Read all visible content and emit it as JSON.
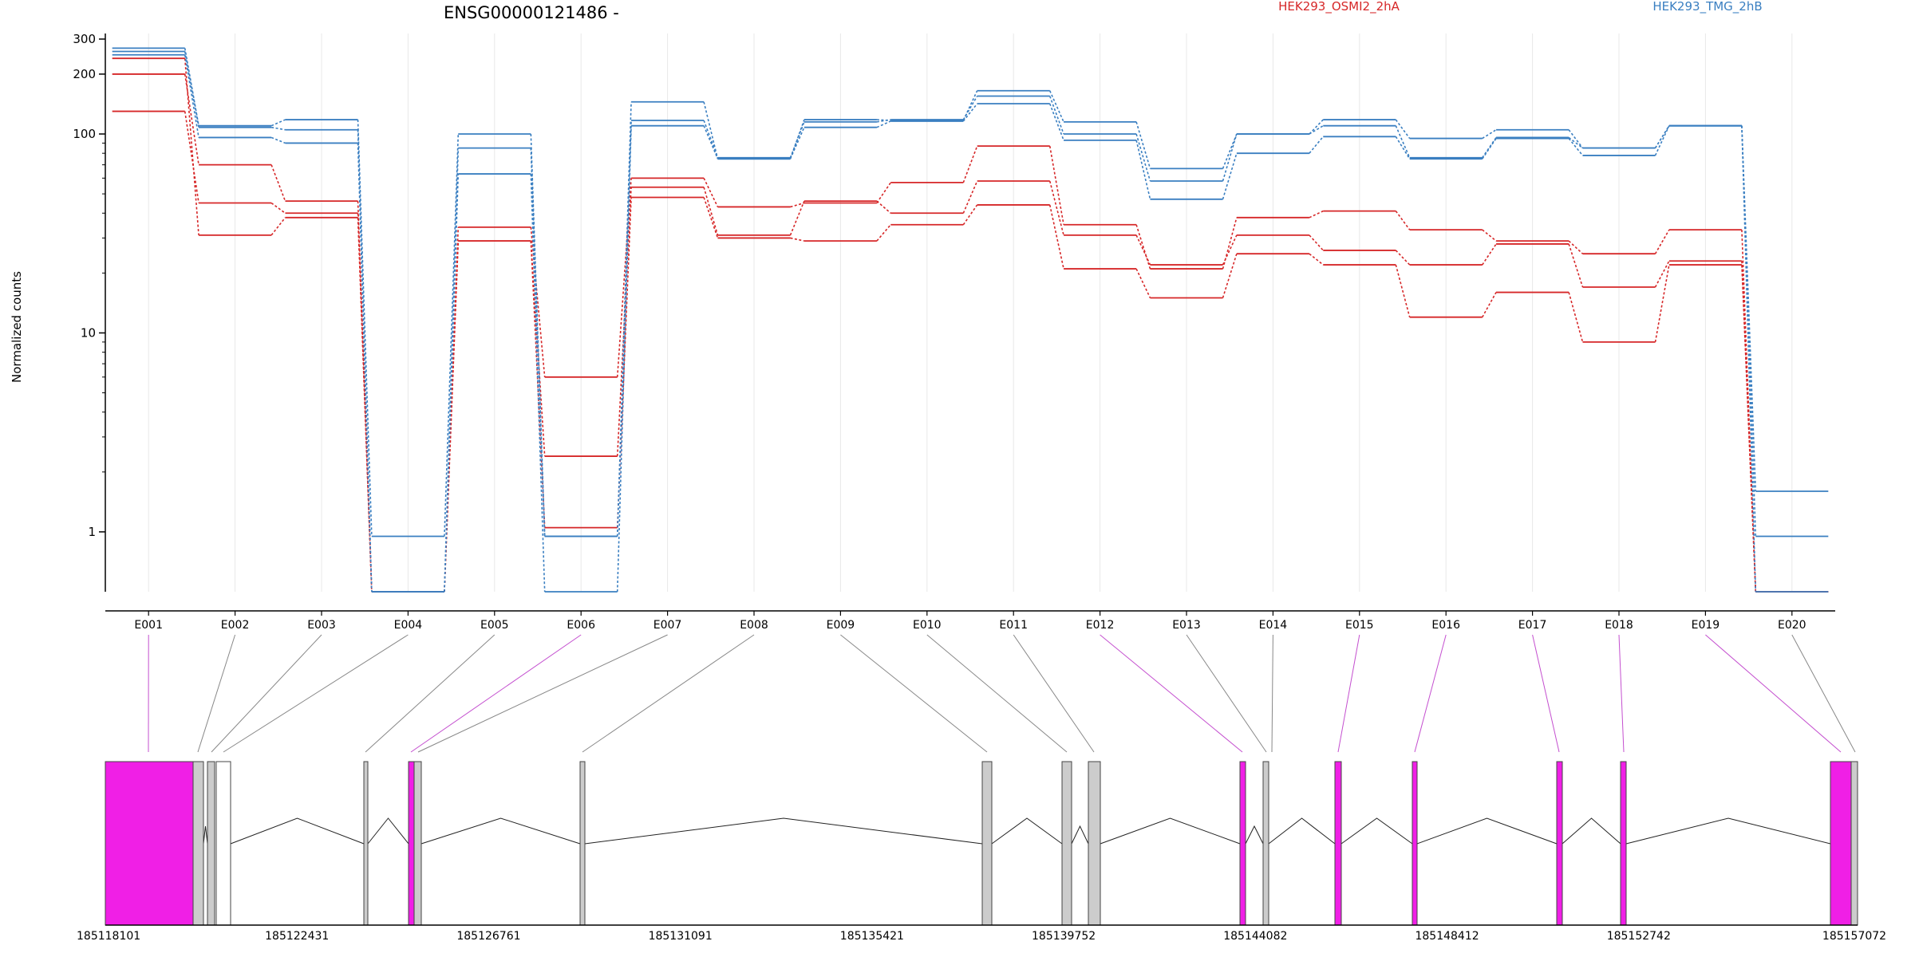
{
  "chart_data": {
    "type": "line",
    "title": "ENSG00000121486 -",
    "ylabel": "Normalized counts",
    "yscale": "log",
    "ylim": [
      0.5,
      320
    ],
    "yticks": [
      1,
      10,
      100,
      200,
      300
    ],
    "ytick_labels": [
      "1",
      "10",
      "100",
      "200",
      "300"
    ],
    "legend_position": "top",
    "grid": true,
    "categories": [
      "E001",
      "E002",
      "E003",
      "E004",
      "E005",
      "E006",
      "E007",
      "E008",
      "E009",
      "E010",
      "E011",
      "E012",
      "E013",
      "E014",
      "E015",
      "E016",
      "E017",
      "E018",
      "E019",
      "E020"
    ],
    "groups": [
      {
        "label": "HEK293_OSMI2_2hA",
        "color": "#d62728"
      },
      {
        "label": "HEK293_TMG_2hB",
        "color": "#3a7fc1"
      }
    ],
    "series": [
      {
        "group": 0,
        "values": [
          200,
          70,
          46,
          0.5,
          34,
          6,
          60,
          43,
          45,
          57,
          87,
          35,
          21,
          38,
          41,
          33,
          29,
          25,
          33,
          0.5
        ]
      },
      {
        "group": 0,
        "values": [
          130,
          45,
          40,
          0.5,
          29,
          2.4,
          54,
          31,
          46,
          40,
          58,
          31,
          22,
          31,
          26,
          22,
          28,
          17,
          23,
          0.5
        ]
      },
      {
        "group": 0,
        "values": [
          240,
          31,
          38,
          0.5,
          29,
          1.05,
          48,
          30,
          29,
          35,
          44,
          21,
          15,
          25,
          22,
          12,
          16,
          9,
          22,
          0.5
        ]
      },
      {
        "group": 1,
        "values": [
          270,
          110,
          118,
          0.95,
          100,
          0.95,
          145,
          75,
          118,
          117,
          165,
          115,
          67,
          100,
          118,
          95,
          105,
          85,
          110,
          1.6
        ]
      },
      {
        "group": 1,
        "values": [
          260,
          108,
          105,
          0.5,
          85,
          0.95,
          117,
          76,
          115,
          118,
          155,
          100,
          58,
          100,
          110,
          76,
          96,
          85,
          110,
          0.95
        ]
      },
      {
        "group": 1,
        "values": [
          250,
          96,
          90,
          0.5,
          63,
          0.5,
          110,
          75,
          108,
          116,
          142,
          93,
          47,
          80,
          97,
          75,
          95,
          78,
          110,
          0.5
        ]
      }
    ],
    "gene_model": {
      "coordinate_labels": [
        "185118101",
        "185122431",
        "185126761",
        "185131091",
        "185135421",
        "185139752",
        "185144082",
        "185148412",
        "185152742",
        "185157072"
      ]
    }
  }
}
